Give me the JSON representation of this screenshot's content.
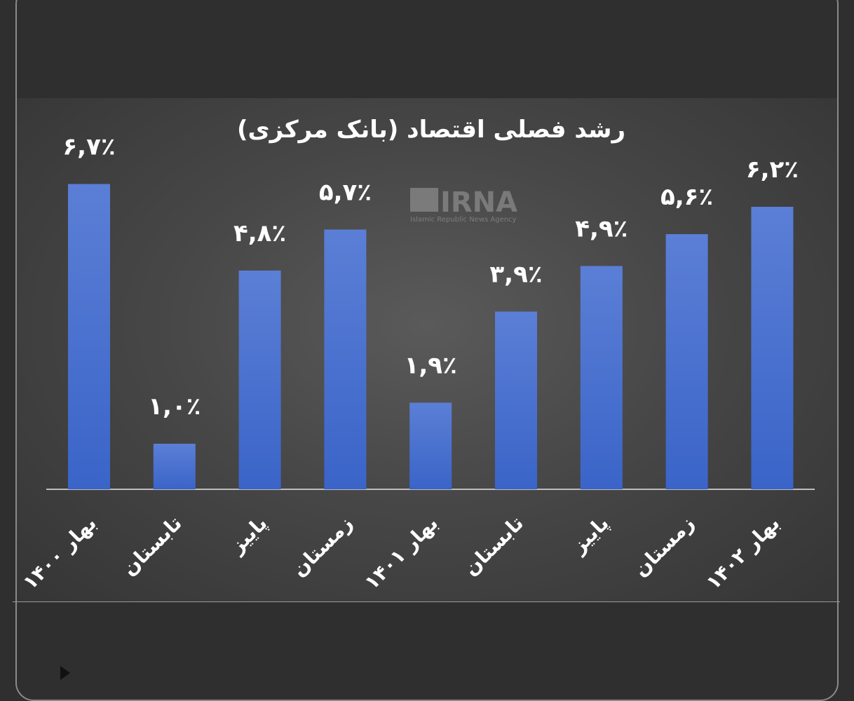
{
  "chart_data": {
    "type": "bar",
    "title": "رشد فصلی اقتصاد (بانک مرکزی)",
    "categories": [
      "بهار ۱۴۰۰",
      "تابستان",
      "پاییز",
      "زمستان",
      "بهار ۱۴۰۱",
      "تابستان",
      "پاییز",
      "زمستان",
      "بهار ۱۴۰۲"
    ],
    "values": [
      6.7,
      1.0,
      4.8,
      5.7,
      1.9,
      3.9,
      4.9,
      5.6,
      6.2
    ],
    "value_labels": [
      "۶,۷٪",
      "۱,۰٪",
      "۴,۸٪",
      "۵,۷٪",
      "۱,۹٪",
      "۳,۹٪",
      "۴,۹٪",
      "۵,۶٪",
      "۶,۲٪"
    ],
    "xlabel": "",
    "ylabel": "",
    "ylim": [
      0,
      7
    ],
    "grid": false,
    "bar_color_top": "#5b7fd6",
    "bar_color_bottom": "#3a64c8"
  },
  "watermark": {
    "logo_text": "IRNA",
    "tagline": "Islamic Republic News Agency"
  }
}
